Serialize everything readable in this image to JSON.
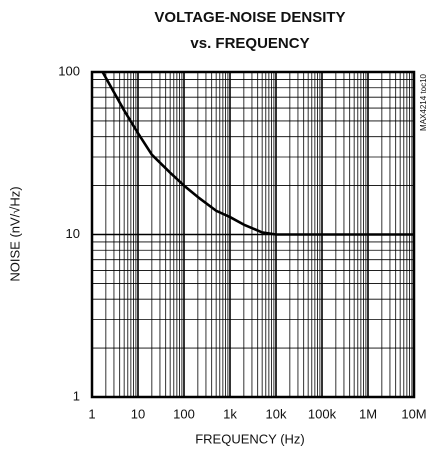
{
  "chart_data": {
    "type": "line",
    "title": "VOLTAGE-NOISE DENSITY",
    "subtitle": "vs. FREQUENCY",
    "xlabel": "FREQUENCY (Hz)",
    "ylabel": "NOISE (nV/√Hz)",
    "annotation": "MAX4214 toc10",
    "x": [
      1.7,
      3,
      5,
      10,
      20,
      50,
      100,
      200,
      500,
      1000,
      2000,
      5000,
      10000,
      10000000
    ],
    "values": [
      100,
      75,
      58,
      42,
      31,
      24,
      20,
      17,
      14,
      12.8,
      11.5,
      10.3,
      10,
      10
    ],
    "color": "#000000",
    "xlog": true,
    "ylog": true,
    "grid": true,
    "minor_grid": true,
    "xlim": [
      1,
      10000000
    ],
    "xticks": [
      1,
      10,
      100,
      {
        "value": 1000,
        "label": "1k"
      },
      {
        "value": 10000,
        "label": "10k"
      },
      {
        "value": 100000,
        "label": "100k"
      },
      {
        "value": 1000000,
        "label": "1M"
      },
      {
        "value": 10000000,
        "label": "10M"
      }
    ],
    "ylim": [
      1,
      100
    ],
    "yticks": [
      1,
      10,
      100
    ]
  }
}
